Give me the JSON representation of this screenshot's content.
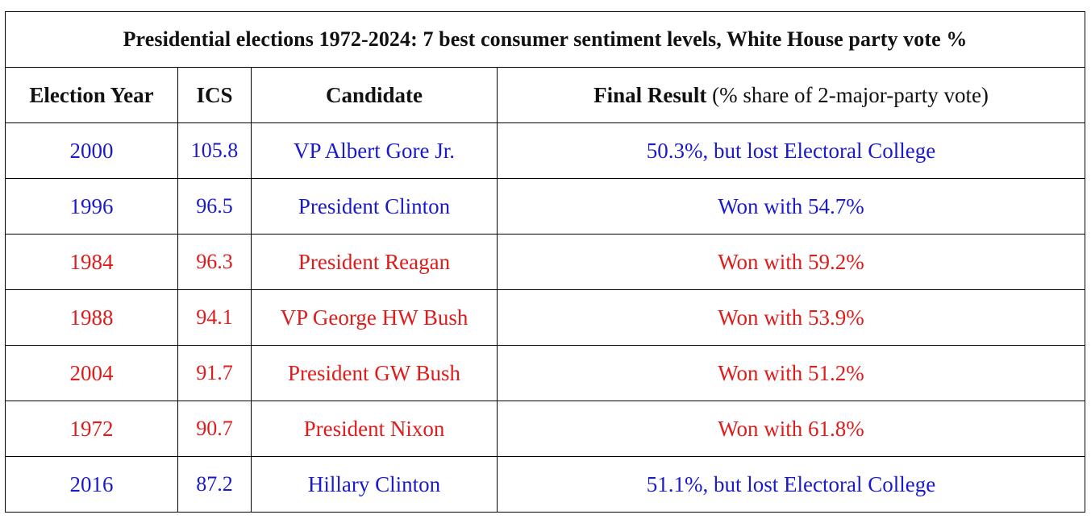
{
  "title": "Presidential elections 1972-2024: 7 best consumer sentiment levels, White House party vote %",
  "columns": {
    "year": "Election Year",
    "ics": "ICS",
    "candidate": "Candidate",
    "result_bold": "Final Result",
    "result_rest": " (% share of 2-major-party vote)"
  },
  "colors": {
    "democratic": "#1a1acc",
    "republican": "#dd1c1c"
  },
  "rows": [
    {
      "year": "2000",
      "ics": "105.8",
      "candidate": "VP Albert Gore Jr.",
      "result": "50.3%, but lost Electoral College",
      "party": "dem"
    },
    {
      "year": "1996",
      "ics": "96.5",
      "candidate": "President Clinton",
      "result": "Won with 54.7%",
      "party": "dem"
    },
    {
      "year": "1984",
      "ics": "96.3",
      "candidate": "President Reagan",
      "result": "Won with 59.2%",
      "party": "rep"
    },
    {
      "year": "1988",
      "ics": "94.1",
      "candidate": "VP George HW Bush",
      "result": "Won with 53.9%",
      "party": "rep"
    },
    {
      "year": "2004",
      "ics": "91.7",
      "candidate": "President GW Bush",
      "result": "Won with 51.2%",
      "party": "rep"
    },
    {
      "year": "1972",
      "ics": "90.7",
      "candidate": "President Nixon",
      "result": "Won with 61.8%",
      "party": "rep"
    },
    {
      "year": "2016",
      "ics": "87.2",
      "candidate": "Hillary Clinton",
      "result": "51.1%, but lost Electoral College",
      "party": "dem"
    }
  ]
}
